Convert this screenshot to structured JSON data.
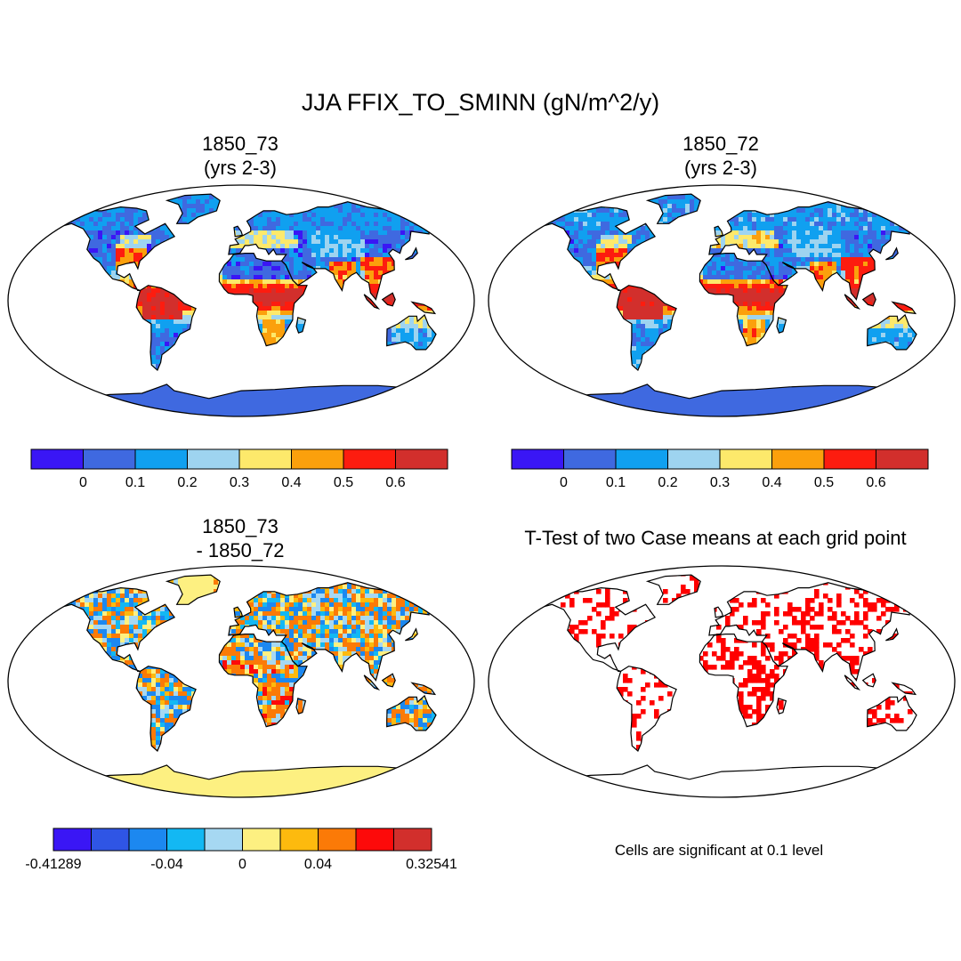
{
  "title": "JJA FFIX_TO_SMINN (gN/m^2/y)",
  "panels": [
    {
      "id": "p1",
      "title_line1": "1850_73",
      "title_line2": "(yrs 2-3)",
      "kind": "field",
      "variant": "a"
    },
    {
      "id": "p2",
      "title_line1": "1850_72",
      "title_line2": "(yrs 2-3)",
      "kind": "field",
      "variant": "b"
    },
    {
      "id": "p3",
      "title_line1": "1850_73",
      "title_line2": "- 1850_72",
      "kind": "diff"
    },
    {
      "id": "p4",
      "title_line1": "T-Test of two Case means at each grid point",
      "kind": "ttest"
    }
  ],
  "colorbars": {
    "field": {
      "colors": [
        "#3a16f5",
        "#3f69e0",
        "#10a0f0",
        "#9ed4f0",
        "#fde96b",
        "#fba00c",
        "#fd1c0f",
        "#d22f2c"
      ],
      "labels": [
        "0",
        "0.1",
        "0.2",
        "0.3",
        "0.4",
        "0.5",
        "0.6"
      ]
    },
    "diff": {
      "colors": [
        "#3a16f5",
        "#2f55e5",
        "#1c88f0",
        "#13b8f3",
        "#a6d8f2",
        "#fdf081",
        "#fdba0e",
        "#fb7a07",
        "#fd0a0a",
        "#d22f2c"
      ],
      "labels": [
        {
          "text": "-0.41289",
          "boundary": 0
        },
        {
          "text": "-0.04",
          "boundary": 3
        },
        {
          "text": "0",
          "boundary": 5
        },
        {
          "text": "0.04",
          "boundary": 7
        },
        {
          "text": "0.32541",
          "boundary": 10
        }
      ]
    }
  },
  "ttest_note": "Cells are significant at 0.1 level",
  "significance_color": "#ff0000"
}
